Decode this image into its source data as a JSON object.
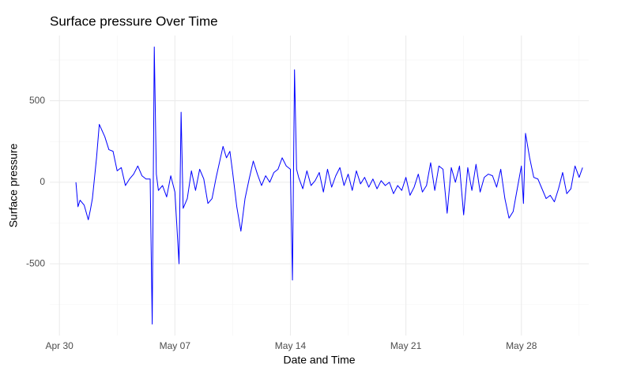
{
  "chart_data": {
    "type": "line",
    "title": "Surface pressure Over Time",
    "x_label": "Date and Time",
    "y_label": "Surface pressure",
    "xlim": [
      "Apr 29 10:00",
      "Jun 01 02:00"
    ],
    "xticks": [
      "Apr 30",
      "May 07",
      "May 14",
      "May 21",
      "May 28"
    ],
    "ylim": [
      -940,
      900
    ],
    "yticks": [
      -500,
      0,
      500
    ],
    "grid": true,
    "series": [
      {
        "name": "Surface pressure",
        "color": "#0000ff",
        "x": [
          "May 01 00:00",
          "May 01 03:00",
          "May 01 06:00",
          "May 01 12:00",
          "May 01 18:00",
          "May 01 21:00",
          "May 02 00:00",
          "May 02 06:00",
          "May 02 10:00",
          "May 02 18:00",
          "May 03 00:00",
          "May 03 06:00",
          "May 03 12:00",
          "May 03 18:00",
          "May 04 00:00",
          "May 04 06:00",
          "May 04 12:00",
          "May 04 18:00",
          "May 05 00:00",
          "May 05 06:00",
          "May 05 12:00",
          "May 05 15:00",
          "May 05 18:00",
          "May 05 21:00",
          "May 06 00:00",
          "May 06 06:00",
          "May 06 12:00",
          "May 06 18:00",
          "May 07 00:00",
          "May 07 06:00",
          "May 07 09:00",
          "May 07 12:00",
          "May 07 18:00",
          "May 08 00:00",
          "May 08 06:00",
          "May 08 12:00",
          "May 08 18:00",
          "May 09 00:00",
          "May 09 06:00",
          "May 09 12:00",
          "May 09 22:00",
          "May 10 03:00",
          "May 10 08:00",
          "May 10 12:00",
          "May 10 18:00",
          "May 11 00:00",
          "May 11 06:00",
          "May 11 12:00",
          "May 11 18:00",
          "May 12 00:00",
          "May 12 06:00",
          "May 12 12:00",
          "May 12 18:00",
          "May 13 00:00",
          "May 13 06:00",
          "May 13 12:00",
          "May 13 18:00",
          "May 14 00:00",
          "May 14 03:00",
          "May 14 06:00",
          "May 14 09:00",
          "May 14 12:00",
          "May 14 18:00",
          "May 15 00:00",
          "May 15 06:00",
          "May 15 12:00",
          "May 15 18:00",
          "May 16 00:00",
          "May 16 06:00",
          "May 16 12:00",
          "May 16 18:00",
          "May 17 00:00",
          "May 17 06:00",
          "May 17 12:00",
          "May 17 18:00",
          "May 18 00:00",
          "May 18 06:00",
          "May 18 12:00",
          "May 18 18:00",
          "May 19 00:00",
          "May 19 06:00",
          "May 19 12:00",
          "May 19 18:00",
          "May 20 00:00",
          "May 20 06:00",
          "May 20 12:00",
          "May 20 18:00",
          "May 21 00:00",
          "May 21 06:00",
          "May 21 12:00",
          "May 21 18:00",
          "May 22 00:00",
          "May 22 06:00",
          "May 22 12:00",
          "May 22 18:00",
          "May 23 00:00",
          "May 23 06:00",
          "May 23 12:00",
          "May 23 18:00",
          "May 24 00:00",
          "May 24 06:00",
          "May 24 12:00",
          "May 24 18:00",
          "May 25 00:00",
          "May 25 06:00",
          "May 25 12:00",
          "May 25 18:00",
          "May 26 00:00",
          "May 26 06:00",
          "May 26 12:00",
          "May 26 18:00",
          "May 27 00:00",
          "May 27 06:00",
          "May 27 12:00",
          "May 27 18:00",
          "May 28 00:00",
          "May 28 03:00",
          "May 28 06:00",
          "May 28 12:00",
          "May 28 18:00",
          "May 29 00:00",
          "May 29 06:00",
          "May 29 12:00",
          "May 29 18:00",
          "May 30 00:00",
          "May 30 06:00",
          "May 30 12:00",
          "May 30 18:00",
          "May 31 00:00",
          "May 31 06:00",
          "May 31 12:00",
          "May 31 17:00"
        ],
        "values": [
          0,
          -150,
          -110,
          -140,
          -230,
          -170,
          -100,
          150,
          355,
          280,
          200,
          190,
          70,
          90,
          -20,
          20,
          50,
          100,
          40,
          20,
          20,
          -870,
          830,
          50,
          -50,
          -20,
          -90,
          40,
          -60,
          -500,
          430,
          -160,
          -100,
          70,
          -50,
          80,
          20,
          -130,
          -100,
          30,
          220,
          150,
          190,
          60,
          -150,
          -300,
          -100,
          20,
          130,
          50,
          -20,
          40,
          0,
          60,
          80,
          150,
          100,
          80,
          -600,
          690,
          80,
          30,
          -40,
          70,
          -20,
          10,
          60,
          -60,
          80,
          -30,
          40,
          90,
          -20,
          50,
          -50,
          70,
          -10,
          30,
          -30,
          20,
          -40,
          10,
          -20,
          0,
          -70,
          -20,
          -50,
          30,
          -80,
          -30,
          50,
          -60,
          -20,
          120,
          -50,
          100,
          80,
          -190,
          90,
          0,
          100,
          -200,
          90,
          -50,
          110,
          -60,
          30,
          50,
          40,
          -30,
          80,
          -100,
          -220,
          -180,
          -40,
          100,
          -130,
          300,
          150,
          30,
          20,
          -40,
          -100,
          -80,
          -120,
          -40,
          60,
          -70,
          -40,
          100,
          30,
          90
        ]
      }
    ]
  }
}
